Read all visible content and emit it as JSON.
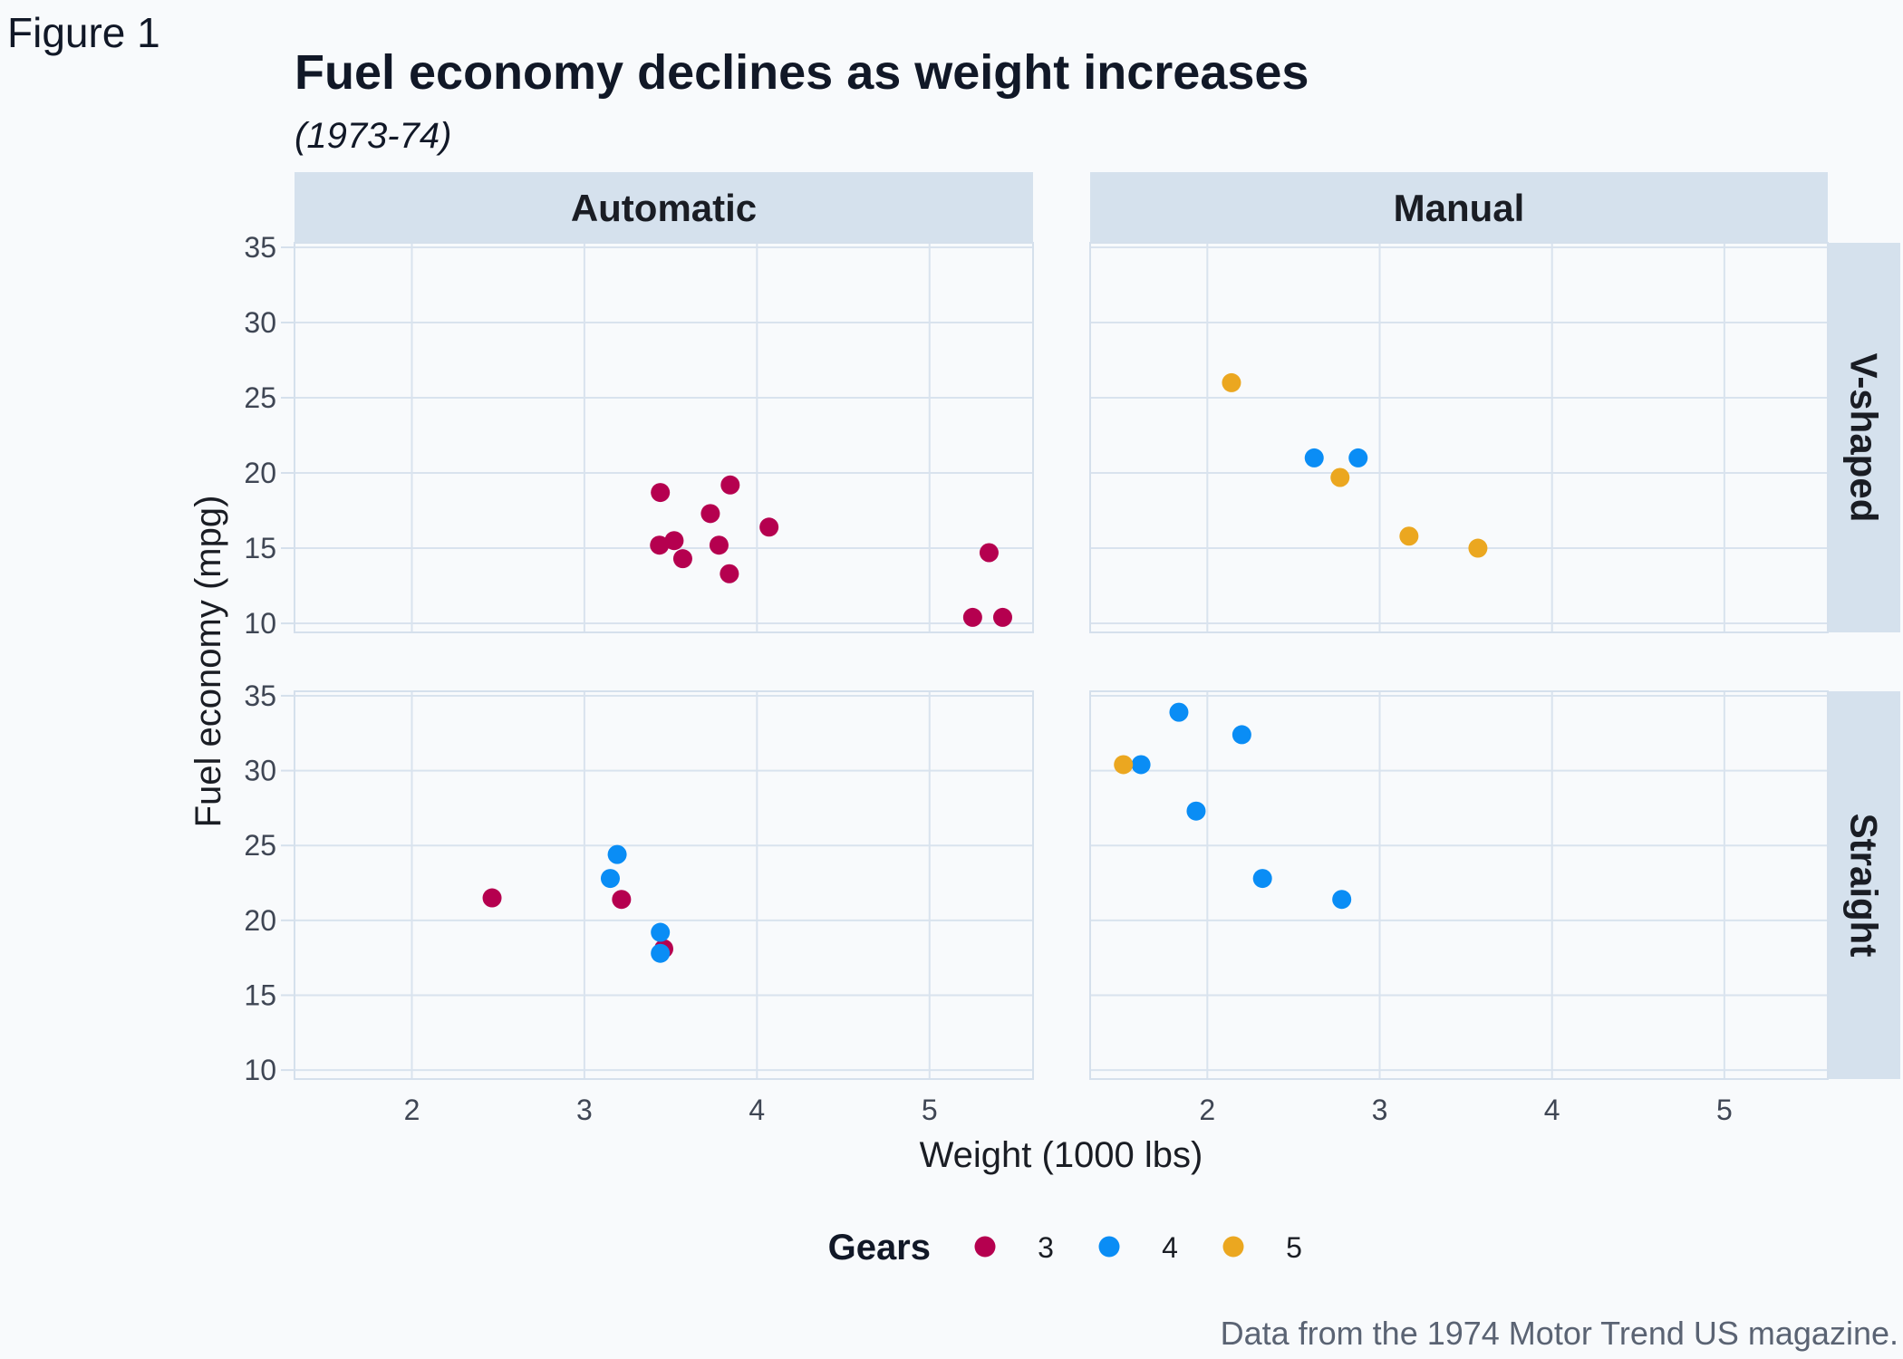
{
  "figure_label": "Figure 1",
  "colors": {
    "background": "#f8fafc",
    "panel_border": "#d5e0ec",
    "grid": "#d9e3ee",
    "strip_fill": "#d5e1ed",
    "title": "#111827",
    "axis_text": "#3f4654",
    "caption": "#5a6373",
    "gear_3": "#b5004f",
    "gear_4": "#0a8df5",
    "gear_5": "#eba720"
  },
  "chart_data": {
    "type": "scatter",
    "title": "Fuel economy declines as weight increases",
    "subtitle": "(1973-74)",
    "xlabel": "Weight (1000 lbs)",
    "ylabel": "Fuel economy (mpg)",
    "caption": "Data from the 1974 Motor Trend US magazine.",
    "xlim": [
      1.32,
      5.6
    ],
    "ylim": [
      9.4,
      35.3
    ],
    "xticks": [
      2,
      3,
      4,
      5
    ],
    "yticks": [
      10,
      15,
      20,
      25,
      30,
      35
    ],
    "grid": true,
    "col_facets": [
      "Automatic",
      "Manual"
    ],
    "row_facets": [
      "V-shaped",
      "Straight"
    ],
    "legend": {
      "title": "Gears",
      "position": "bottom",
      "entries": [
        {
          "label": "3",
          "color_key": "gear_3"
        },
        {
          "label": "4",
          "color_key": "gear_4"
        },
        {
          "label": "5",
          "color_key": "gear_5"
        }
      ]
    },
    "panels": [
      {
        "col": "Automatic",
        "row": "V-shaped",
        "points": [
          {
            "x": 3.44,
            "y": 18.7,
            "gear": "3"
          },
          {
            "x": 3.57,
            "y": 14.3,
            "gear": "3"
          },
          {
            "x": 4.07,
            "y": 16.4,
            "gear": "3"
          },
          {
            "x": 3.73,
            "y": 17.3,
            "gear": "3"
          },
          {
            "x": 3.78,
            "y": 15.2,
            "gear": "3"
          },
          {
            "x": 5.25,
            "y": 10.4,
            "gear": "3"
          },
          {
            "x": 5.424,
            "y": 10.4,
            "gear": "3"
          },
          {
            "x": 5.345,
            "y": 14.7,
            "gear": "3"
          },
          {
            "x": 3.52,
            "y": 15.5,
            "gear": "3"
          },
          {
            "x": 3.435,
            "y": 15.2,
            "gear": "3"
          },
          {
            "x": 3.84,
            "y": 13.3,
            "gear": "3"
          },
          {
            "x": 3.845,
            "y": 19.2,
            "gear": "3"
          }
        ]
      },
      {
        "col": "Manual",
        "row": "V-shaped",
        "points": [
          {
            "x": 2.62,
            "y": 21.0,
            "gear": "4"
          },
          {
            "x": 2.875,
            "y": 21.0,
            "gear": "4"
          },
          {
            "x": 2.14,
            "y": 26.0,
            "gear": "5"
          },
          {
            "x": 3.17,
            "y": 15.8,
            "gear": "5"
          },
          {
            "x": 2.77,
            "y": 19.7,
            "gear": "5"
          },
          {
            "x": 3.57,
            "y": 15.0,
            "gear": "5"
          }
        ]
      },
      {
        "col": "Automatic",
        "row": "Straight",
        "points": [
          {
            "x": 2.465,
            "y": 21.5,
            "gear": "3"
          },
          {
            "x": 3.215,
            "y": 21.4,
            "gear": "3"
          },
          {
            "x": 3.46,
            "y": 18.1,
            "gear": "3"
          },
          {
            "x": 3.19,
            "y": 24.4,
            "gear": "4"
          },
          {
            "x": 3.15,
            "y": 22.8,
            "gear": "4"
          },
          {
            "x": 3.44,
            "y": 19.2,
            "gear": "4"
          },
          {
            "x": 3.44,
            "y": 17.8,
            "gear": "4"
          }
        ]
      },
      {
        "col": "Manual",
        "row": "Straight",
        "points": [
          {
            "x": 2.32,
            "y": 22.8,
            "gear": "4"
          },
          {
            "x": 2.2,
            "y": 32.4,
            "gear": "4"
          },
          {
            "x": 1.615,
            "y": 30.4,
            "gear": "4"
          },
          {
            "x": 1.835,
            "y": 33.9,
            "gear": "4"
          },
          {
            "x": 1.935,
            "y": 27.3,
            "gear": "4"
          },
          {
            "x": 2.78,
            "y": 21.4,
            "gear": "4"
          },
          {
            "x": 1.513,
            "y": 30.4,
            "gear": "5"
          }
        ]
      }
    ]
  }
}
